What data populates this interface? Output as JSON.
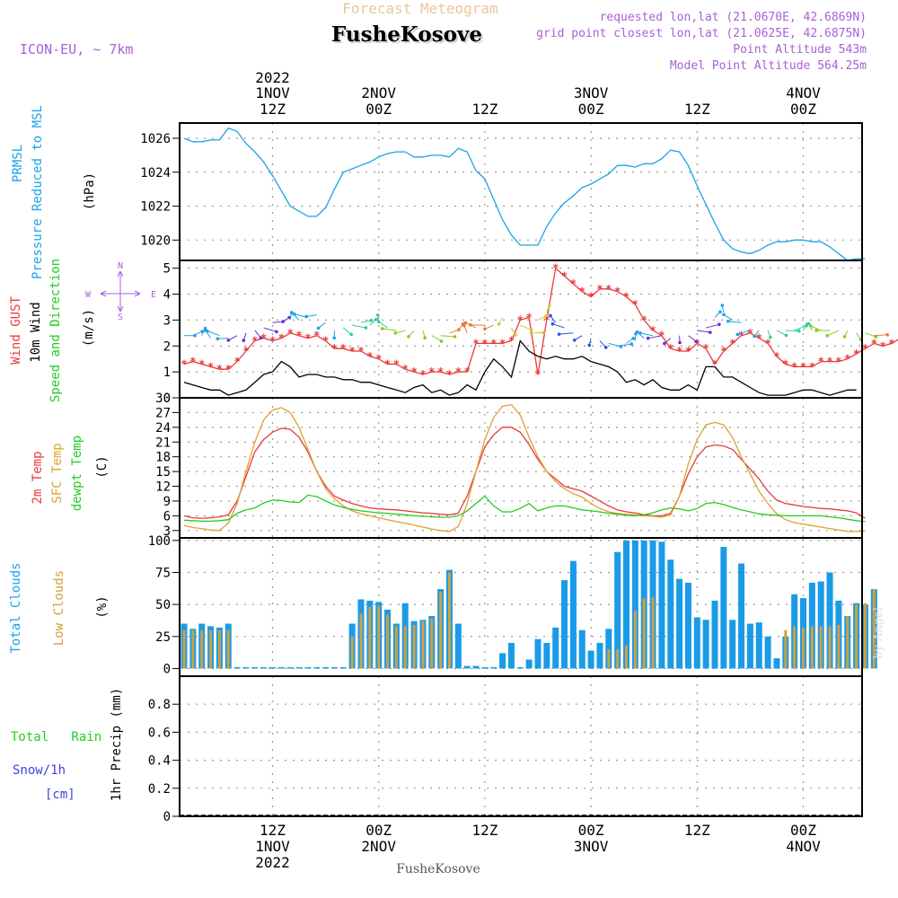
{
  "header": {
    "super_title": "Forecast Meteogram",
    "location": "FusheKosove",
    "model": "ICON-EU, ~ 7km",
    "requested": "requested lon,lat (21.0670E, 42.6869N)",
    "closest": "grid point closest lon,lat (21.0625E, 42.6875N)",
    "point_altitude": "Point Altitude 543m",
    "model_altitude": "Model Point Altitude 564.25m",
    "watermark": "by Angel",
    "footer_location": "FusheKosove"
  },
  "colors": {
    "pressure": "#1aa3e8",
    "gust": "#e83a3a",
    "wind": "#000000",
    "temp2m": "#e83a3a",
    "sfc": "#e0a030",
    "dewpt": "#22cc22",
    "total_clouds": "#1a9be8",
    "low_clouds": "#d0a040",
    "model_text": "#a860d8",
    "title_text": "#e8c898"
  },
  "time_axis": {
    "top_labels": [
      {
        "day": "1NOV",
        "hour": "12Z",
        "year": "2022",
        "hour_index": 10
      },
      {
        "day": "2NOV",
        "hour": "00Z",
        "year": "",
        "hour_index": 22
      },
      {
        "day": "",
        "hour": "12Z",
        "year": "",
        "hour_index": 34
      },
      {
        "day": "3NOV",
        "hour": "00Z",
        "year": "",
        "hour_index": 46
      },
      {
        "day": "",
        "hour": "12Z",
        "year": "",
        "hour_index": 58
      },
      {
        "day": "4NOV",
        "hour": "00Z",
        "year": "",
        "hour_index": 70
      }
    ],
    "bottom_labels": [
      {
        "hour": "12Z",
        "day": "1NOV",
        "year": "2022",
        "hour_index": 10
      },
      {
        "hour": "00Z",
        "day": "2NOV",
        "year": "",
        "hour_index": 22
      },
      {
        "hour": "12Z",
        "day": "",
        "year": "",
        "hour_index": 34
      },
      {
        "hour": "00Z",
        "day": "3NOV",
        "year": "",
        "hour_index": 46
      },
      {
        "hour": "12Z",
        "day": "",
        "year": "",
        "hour_index": 58
      },
      {
        "hour": "00Z",
        "day": "4NOV",
        "year": "",
        "hour_index": 70
      }
    ]
  },
  "chart_data": [
    {
      "type": "line",
      "title": "PRMSL Pressure Reduced to MSL",
      "ylabel_lines": [
        "PRMSL",
        "Pressure Reduced to MSL"
      ],
      "unit": "(hPa)",
      "ylim": [
        1018.8,
        1026.9
      ],
      "yticks": [
        1020,
        1022,
        1024,
        1026
      ],
      "series": [
        {
          "name": "PRMSL",
          "x_start": 0,
          "x_step": 1,
          "values": [
            1026.0,
            1025.8,
            1025.8,
            1025.9,
            1025.9,
            1026.6,
            1026.4,
            1025.7,
            1025.2,
            1024.6,
            1023.8,
            1022.9,
            1022.0,
            1021.7,
            1021.4,
            1021.4,
            1021.9,
            1023.0,
            1024.0,
            1024.2,
            1024.4,
            1024.6,
            1024.9,
            1025.1,
            1025.2,
            1025.2,
            1024.9,
            1024.9,
            1025.0,
            1025.0,
            1024.9,
            1025.4,
            1025.2,
            1024.1,
            1023.6,
            1022.4,
            1021.2,
            1020.3,
            1019.7,
            1019.7,
            1019.7,
            1020.8,
            1021.6,
            1022.2,
            1022.6,
            1023.1,
            1023.3,
            1023.6,
            1023.9,
            1024.4,
            1024.4,
            1024.3,
            1024.5,
            1024.5,
            1024.8,
            1025.3,
            1025.2,
            1024.4,
            1023.2,
            1022.1,
            1021.0,
            1020.0,
            1019.5,
            1019.3,
            1019.2,
            1019.4,
            1019.7,
            1019.9,
            1019.9,
            1020.0,
            1020.0,
            1019.9,
            1019.9,
            1019.6,
            1019.2,
            1018.8,
            1018.9,
            1018.9
          ]
        }
      ]
    },
    {
      "type": "line",
      "title": "Wind GUST / 10m Wind Speed and Direction",
      "ylabel_lines": [
        "Wind GUST",
        "10m Wind",
        "Speed and Direction"
      ],
      "unit": "(m/s)",
      "compass": {
        "n": "N",
        "s": "S",
        "w": "W",
        "e": "E"
      },
      "ylim": [
        0,
        5.3
      ],
      "yticks": [
        0,
        1,
        2,
        3,
        4,
        5
      ],
      "series": [
        {
          "name": "Wind GUST",
          "x_start": 0,
          "x_step": 1,
          "values": [
            1.3,
            1.4,
            1.3,
            1.2,
            1.1,
            1.1,
            1.4,
            1.8,
            2.2,
            2.3,
            2.2,
            2.3,
            2.5,
            2.4,
            2.3,
            2.4,
            2.2,
            1.9,
            1.9,
            1.8,
            1.8,
            1.6,
            1.5,
            1.3,
            1.3,
            1.1,
            1.0,
            0.9,
            1.0,
            1.0,
            0.9,
            1.0,
            1.0,
            2.1,
            2.1,
            2.1,
            2.1,
            2.2,
            3.0,
            3.1,
            0.9,
            3.0,
            5.0,
            4.7,
            4.4,
            4.1,
            3.9,
            4.2,
            4.2,
            4.1,
            3.9,
            3.6,
            3.0,
            2.6,
            2.4,
            1.9,
            1.8,
            1.8,
            2.1,
            1.9,
            1.3,
            1.8,
            2.1,
            2.4,
            2.5,
            2.3,
            2.1,
            1.6,
            1.3,
            1.2,
            1.2,
            1.2,
            1.4,
            1.4,
            1.4,
            1.5,
            1.7,
            1.9,
            2.1,
            2.0,
            2.1,
            2.3,
            2.3
          ]
        },
        {
          "name": "10m Wind",
          "x_start": 0,
          "x_step": 1,
          "values": [
            0.6,
            0.5,
            0.4,
            0.3,
            0.3,
            0.1,
            0.2,
            0.3,
            0.6,
            0.9,
            1.0,
            1.4,
            1.2,
            0.8,
            0.9,
            0.9,
            0.8,
            0.8,
            0.7,
            0.7,
            0.6,
            0.6,
            0.5,
            0.4,
            0.3,
            0.2,
            0.4,
            0.5,
            0.2,
            0.3,
            0.1,
            0.2,
            0.5,
            0.3,
            1.0,
            1.5,
            1.2,
            0.8,
            2.2,
            1.8,
            1.6,
            1.5,
            1.6,
            1.5,
            1.5,
            1.6,
            1.4,
            1.3,
            1.2,
            1.0,
            0.6,
            0.7,
            0.5,
            0.7,
            0.4,
            0.3,
            0.3,
            0.5,
            0.3,
            1.2,
            1.2,
            0.8,
            0.8,
            0.6,
            0.4,
            0.2,
            0.1,
            0.1,
            0.1,
            0.2,
            0.3,
            0.3,
            0.2,
            0.1,
            0.2,
            0.3,
            0.3
          ]
        },
        {
          "name": "wind_barbs",
          "arrow_y": [
            2.4,
            2.4,
            2.4,
            2.3,
            2.4,
            2.3,
            2.4,
            2.5,
            2.6,
            2.7,
            2.9,
            2.9,
            3.0,
            3.0,
            3.1,
            3.2,
            2.9,
            2.6,
            2.7,
            2.8,
            2.9,
            2.8,
            2.9,
            2.7,
            2.6,
            2.6,
            2.6,
            2.6,
            2.4,
            2.4,
            2.5,
            2.6,
            2.5,
            2.7,
            2.8,
            2.8,
            3.1,
            2.7,
            2.8,
            2.5,
            3.0,
            3.3,
            2.9,
            2.7,
            2.5,
            2.4,
            2.3,
            2.2,
            2.1,
            2.0,
            2.1,
            2.2,
            2.3,
            2.4,
            2.4,
            2.3,
            2.4,
            2.4,
            2.6,
            2.7,
            3.1,
            3.3,
            3.0,
            2.9,
            2.6,
            2.6,
            2.6,
            2.6,
            2.6,
            2.6,
            2.6,
            2.6,
            2.6,
            2.6,
            2.6,
            2.6,
            2.5,
            2.5,
            2.4
          ]
        }
      ]
    },
    {
      "type": "line",
      "title": "2m Temp / SFC Temp / dewpt Temp",
      "ylabel_lines": [
        "2m Temp",
        "SFC Temp",
        "dewpt Temp"
      ],
      "unit": "(C)",
      "ylim": [
        1.5,
        30
      ],
      "yticks": [
        3,
        6,
        9,
        12,
        15,
        18,
        21,
        24,
        27,
        30
      ],
      "series": [
        {
          "name": "2m Temp",
          "x_start": 0,
          "x_step": 1,
          "values": [
            6.0,
            5.6,
            5.5,
            5.6,
            5.8,
            6.2,
            9.0,
            14.0,
            19.0,
            21.5,
            23.0,
            23.8,
            23.6,
            22.0,
            19.0,
            15.0,
            12.0,
            10.0,
            9.2,
            8.5,
            8.0,
            7.6,
            7.4,
            7.3,
            7.2,
            7.0,
            6.8,
            6.6,
            6.5,
            6.3,
            6.2,
            6.5,
            10.0,
            15.0,
            20.0,
            22.5,
            24.0,
            24.0,
            23.0,
            20.5,
            17.5,
            15.0,
            13.5,
            12.0,
            11.5,
            11.0,
            10.0,
            9.0,
            8.0,
            7.2,
            6.8,
            6.6,
            6.2,
            6.0,
            6.0,
            6.5,
            10.0,
            14.5,
            18.0,
            20.0,
            20.4,
            20.2,
            19.5,
            17.5,
            15.5,
            13.5,
            11.0,
            9.2,
            8.5,
            8.2,
            7.9,
            7.7,
            7.5,
            7.4,
            7.2,
            7.0,
            6.6,
            5.5
          ]
        },
        {
          "name": "SFC Temp",
          "x_start": 0,
          "x_step": 1,
          "values": [
            4.0,
            3.6,
            3.4,
            3.1,
            3.0,
            4.5,
            8.5,
            15.0,
            21.0,
            25.5,
            27.5,
            28.0,
            27.0,
            24.0,
            19.5,
            15.0,
            11.5,
            9.5,
            8.0,
            7.0,
            6.4,
            6.0,
            5.6,
            5.2,
            4.8,
            4.5,
            4.1,
            3.7,
            3.3,
            3.0,
            2.8,
            3.8,
            8.5,
            15.0,
            21.5,
            26.0,
            28.3,
            28.6,
            26.5,
            22.0,
            18.0,
            15.0,
            13.0,
            11.5,
            10.5,
            9.8,
            8.5,
            7.5,
            6.8,
            6.5,
            6.3,
            6.2,
            6.0,
            5.9,
            5.7,
            6.2,
            10.0,
            16.5,
            21.5,
            24.5,
            25.0,
            24.5,
            22.0,
            18.0,
            14.5,
            11.0,
            8.5,
            6.4,
            5.2,
            4.6,
            4.3,
            4.0,
            3.7,
            3.4,
            3.1,
            2.8,
            2.8,
            2.9
          ]
        },
        {
          "name": "dewpt Temp",
          "x_start": 0,
          "x_step": 1,
          "values": [
            5.1,
            5.0,
            4.9,
            4.9,
            5.0,
            5.2,
            6.5,
            7.2,
            7.6,
            8.6,
            9.2,
            9.1,
            8.8,
            8.7,
            10.2,
            9.9,
            9.0,
            8.2,
            7.7,
            7.3,
            7.0,
            6.8,
            6.6,
            6.5,
            6.3,
            6.2,
            6.0,
            5.9,
            5.8,
            5.7,
            5.7,
            6.0,
            7.0,
            8.5,
            10.0,
            8.0,
            6.8,
            6.8,
            7.5,
            8.5,
            7.0,
            7.6,
            8.0,
            8.0,
            7.6,
            7.2,
            7.0,
            6.8,
            6.5,
            6.3,
            6.1,
            6.0,
            6.2,
            6.6,
            7.2,
            7.6,
            7.4,
            7.0,
            7.5,
            8.5,
            8.7,
            8.3,
            7.7,
            7.2,
            6.8,
            6.4,
            6.2,
            6.1,
            6.0,
            6.0,
            6.0,
            6.0,
            6.0,
            5.8,
            5.6,
            5.3,
            5.0,
            4.8
          ]
        }
      ]
    },
    {
      "type": "bar",
      "title": "Total Clouds / Low Clouds",
      "ylabel_lines": [
        "Total Clouds",
        "Low Clouds"
      ],
      "unit": "(%)",
      "ylim": [
        -6,
        102
      ],
      "yticks": [
        0,
        25,
        50,
        75,
        100
      ],
      "series": [
        {
          "name": "Total Clouds",
          "x_start": 0,
          "x_step": 1,
          "values": [
            35,
            31,
            35,
            33,
            32,
            35,
            1,
            1,
            1,
            1,
            1,
            1,
            1,
            1,
            1,
            1,
            1,
            1,
            1,
            35,
            54,
            53,
            52,
            46,
            35,
            51,
            37,
            38,
            41,
            62,
            77,
            35,
            2,
            2,
            1,
            1,
            12,
            20,
            1,
            7,
            23,
            20,
            32,
            69,
            84,
            30,
            14,
            20,
            31,
            91,
            100,
            100,
            100,
            100,
            99,
            85,
            70,
            67,
            40,
            38,
            53,
            95,
            38,
            82,
            35,
            36,
            25,
            8,
            25,
            58,
            55,
            67,
            68,
            75,
            53,
            41,
            51,
            50,
            62
          ]
        },
        {
          "name": "Low Clouds",
          "x_start": 0,
          "x_step": 1,
          "values": [
            30,
            30,
            30,
            30,
            30,
            30,
            0,
            0,
            0,
            0,
            0,
            0,
            0,
            0,
            0,
            0,
            0,
            0,
            0,
            25,
            43,
            48,
            49,
            42,
            33,
            33,
            34,
            37,
            39,
            60,
            75,
            0,
            0,
            0,
            0,
            0,
            0,
            0,
            0,
            0,
            0,
            0,
            0,
            0,
            0,
            0,
            0,
            0,
            15,
            15,
            18,
            45,
            55,
            56,
            0,
            0,
            0,
            0,
            0,
            0,
            0,
            0,
            0,
            0,
            0,
            0,
            0,
            0,
            30,
            33,
            32,
            33,
            33,
            33,
            34,
            41,
            50,
            51,
            62
          ]
        }
      ]
    },
    {
      "type": "bar",
      "title": "Total Rain Snow/1h [cm] / 1hr Precip (mm)",
      "ylabel_lines": [
        "1hr Precip (mm)"
      ],
      "legend_lines": [
        "Total   Rain",
        "Snow/1h",
        "[cm]"
      ],
      "ylim": [
        0,
        1.0
      ],
      "yticks": [
        0,
        0.2,
        0.4,
        0.6,
        0.8
      ],
      "ytick_labels": [
        "0",
        "0.2",
        "0.4",
        "0.6",
        "0.8"
      ],
      "series": [
        {
          "name": "Total Rain",
          "x_start": 0,
          "x_step": 1,
          "values": []
        },
        {
          "name": "Snow/1h",
          "x_start": 0,
          "x_step": 1,
          "values": []
        }
      ]
    }
  ]
}
